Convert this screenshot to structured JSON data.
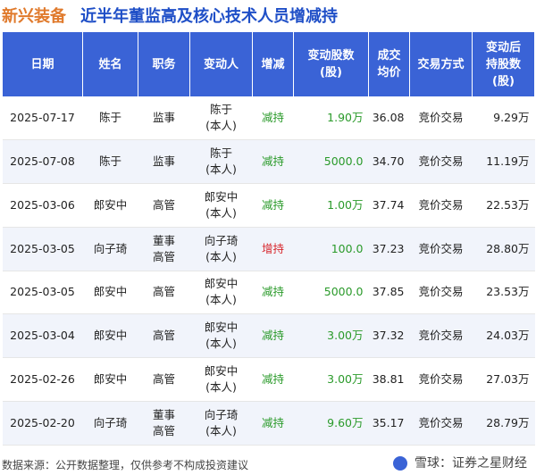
{
  "header": {
    "company": "新兴装备",
    "subtitle": "近半年董监高及核心技术人员增减持"
  },
  "table": {
    "columns": [
      {
        "lines": [
          "日期"
        ]
      },
      {
        "lines": [
          "姓名"
        ]
      },
      {
        "lines": [
          "职务"
        ]
      },
      {
        "lines": [
          "变动人"
        ]
      },
      {
        "lines": [
          "增减"
        ]
      },
      {
        "lines": [
          "变动股数",
          "(股)"
        ]
      },
      {
        "lines": [
          "成交",
          "均价"
        ]
      },
      {
        "lines": [
          "交易方式"
        ]
      },
      {
        "lines": [
          "变动后",
          "持股数",
          "(股)"
        ]
      }
    ],
    "rows": [
      {
        "date": "2025-07-17",
        "name": "陈于",
        "position": [
          "监事"
        ],
        "changer": [
          "陈于",
          "(本人)"
        ],
        "direction": "减持",
        "dir_color": "#2a9a2a",
        "shares": "1.90万",
        "price": "36.08",
        "method": "竞价交易",
        "after": "9.29万"
      },
      {
        "date": "2025-07-08",
        "name": "陈于",
        "position": [
          "监事"
        ],
        "changer": [
          "陈于",
          "(本人)"
        ],
        "direction": "减持",
        "dir_color": "#2a9a2a",
        "shares": "5000.0",
        "price": "34.70",
        "method": "竞价交易",
        "after": "11.19万"
      },
      {
        "date": "2025-03-06",
        "name": "郎安中",
        "position": [
          "高管"
        ],
        "changer": [
          "郎安中",
          "(本人)"
        ],
        "direction": "减持",
        "dir_color": "#2a9a2a",
        "shares": "1.00万",
        "price": "37.74",
        "method": "竞价交易",
        "after": "22.53万"
      },
      {
        "date": "2025-03-05",
        "name": "向子琦",
        "position": [
          "董事",
          "高管"
        ],
        "changer": [
          "向子琦",
          "(本人)"
        ],
        "direction": "增持",
        "dir_color": "#d7262c",
        "shares": "100.0",
        "price": "37.23",
        "method": "竞价交易",
        "after": "28.80万"
      },
      {
        "date": "2025-03-05",
        "name": "郎安中",
        "position": [
          "高管"
        ],
        "changer": [
          "郎安中",
          "(本人)"
        ],
        "direction": "减持",
        "dir_color": "#2a9a2a",
        "shares": "5000.0",
        "price": "37.85",
        "method": "竞价交易",
        "after": "23.53万"
      },
      {
        "date": "2025-03-04",
        "name": "郎安中",
        "position": [
          "高管"
        ],
        "changer": [
          "郎安中",
          "(本人)"
        ],
        "direction": "减持",
        "dir_color": "#2a9a2a",
        "shares": "3.00万",
        "price": "37.32",
        "method": "竞价交易",
        "after": "24.03万"
      },
      {
        "date": "2025-02-26",
        "name": "郎安中",
        "position": [
          "高管"
        ],
        "changer": [
          "郎安中",
          "(本人)"
        ],
        "direction": "减持",
        "dir_color": "#2a9a2a",
        "shares": "3.00万",
        "price": "38.81",
        "method": "竞价交易",
        "after": "27.03万"
      },
      {
        "date": "2025-02-20",
        "name": "向子琦",
        "position": [
          "董事",
          "高管"
        ],
        "changer": [
          "向子琦",
          "(本人)"
        ],
        "direction": "减持",
        "dir_color": "#2a9a2a",
        "shares": "9.60万",
        "price": "35.17",
        "method": "竞价交易",
        "after": "28.79万"
      }
    ]
  },
  "footer": {
    "source": "数据来源：公开数据整理，仅供参考不构成投资建议",
    "brand": "雪球：证券之星财经"
  }
}
